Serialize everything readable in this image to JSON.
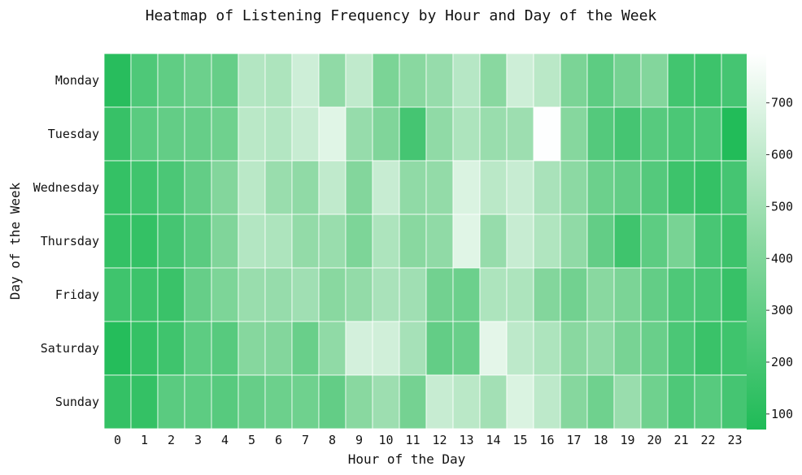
{
  "chart_data": {
    "type": "heatmap",
    "title": "Heatmap of Listening Frequency by Hour and Day of the Week",
    "xlabel": "Hour of the Day",
    "ylabel": "Day of the Week",
    "x_categories": [
      "0",
      "1",
      "2",
      "3",
      "4",
      "5",
      "6",
      "7",
      "8",
      "9",
      "10",
      "11",
      "12",
      "13",
      "14",
      "15",
      "16",
      "17",
      "18",
      "19",
      "20",
      "21",
      "22",
      "23"
    ],
    "y_categories": [
      "Monday",
      "Tuesday",
      "Wednesday",
      "Thursday",
      "Friday",
      "Saturday",
      "Sunday"
    ],
    "values": [
      [
        100,
        230,
        290,
        330,
        310,
        560,
        540,
        640,
        450,
        600,
        380,
        430,
        470,
        570,
        430,
        640,
        580,
        380,
        280,
        360,
        410,
        190,
        170,
        200
      ],
      [
        150,
        270,
        300,
        310,
        340,
        580,
        560,
        620,
        700,
        470,
        400,
        200,
        450,
        540,
        480,
        490,
        790,
        420,
        250,
        200,
        260,
        220,
        220,
        80
      ],
      [
        140,
        180,
        220,
        300,
        410,
        580,
        480,
        450,
        600,
        410,
        620,
        450,
        460,
        680,
        580,
        620,
        530,
        440,
        330,
        300,
        250,
        170,
        140,
        200
      ],
      [
        140,
        140,
        200,
        270,
        400,
        560,
        540,
        460,
        480,
        390,
        540,
        430,
        450,
        700,
        470,
        620,
        550,
        450,
        300,
        180,
        280,
        370,
        210,
        170
      ],
      [
        180,
        170,
        160,
        310,
        390,
        480,
        470,
        500,
        430,
        460,
        530,
        500,
        350,
        330,
        540,
        540,
        410,
        350,
        430,
        380,
        300,
        230,
        210,
        150
      ],
      [
        90,
        140,
        180,
        280,
        260,
        420,
        410,
        320,
        450,
        660,
        650,
        520,
        300,
        320,
        710,
        590,
        540,
        430,
        450,
        370,
        320,
        220,
        160,
        180
      ],
      [
        140,
        140,
        270,
        280,
        260,
        310,
        330,
        340,
        300,
        430,
        490,
        360,
        620,
        580,
        510,
        680,
        590,
        420,
        340,
        480,
        340,
        230,
        260,
        200
      ]
    ],
    "colorbar": {
      "min": 70,
      "max": 795,
      "ticks": [
        100,
        200,
        300,
        400,
        500,
        600,
        700
      ]
    },
    "colors": {
      "low": "#1fbb57",
      "mid": "#8ad8a1",
      "high": "#ffffff",
      "cell_border": "#ffffff"
    }
  }
}
